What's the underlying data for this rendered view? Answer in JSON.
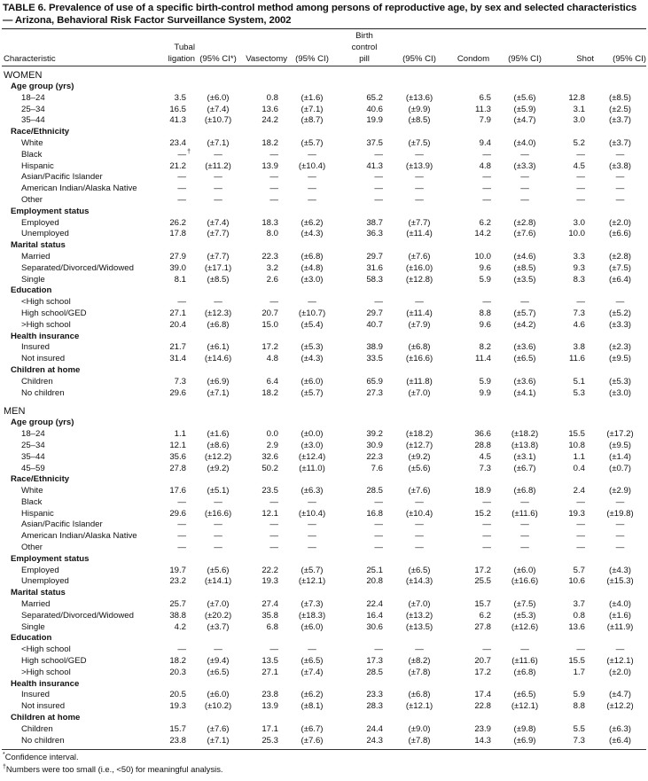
{
  "title": "TABLE 6. Prevalence of use of a specific birth-control method among persons of reproductive age, by sex and selected characteristics — Arizona, Behavioral Risk Factor Surveillance System, 2002",
  "headers": {
    "characteristic": "Characteristic",
    "tubal": [
      "Tubal",
      "ligation"
    ],
    "ci_star": "(95% CI*)",
    "vasectomy": "Vasectomy",
    "ci": "(95% CI)",
    "pill": [
      "Birth",
      "control",
      "pill"
    ],
    "condom": "Condom",
    "shot": "Shot"
  },
  "sections": [
    {
      "label": "WOMEN",
      "groups": [
        {
          "label": "Age group (yrs)",
          "rows": [
            {
              "label": "18–24",
              "values": [
                "3.5",
                "(±6.0)",
                "0.8",
                "(±1.6)",
                "65.2",
                "(±13.6)",
                "6.5",
                "(±5.6)",
                "12.8",
                "(±8.5)"
              ]
            },
            {
              "label": "25–34",
              "values": [
                "16.5",
                "(±7.4)",
                "13.6",
                "(±7.1)",
                "40.6",
                "(±9.9)",
                "11.3",
                "(±5.9)",
                "3.1",
                "(±2.5)"
              ]
            },
            {
              "label": "35–44",
              "values": [
                "41.3",
                "(±10.7)",
                "24.2",
                "(±8.7)",
                "19.9",
                "(±8.5)",
                "7.9",
                "(±4.7)",
                "3.0",
                "(±3.7)"
              ]
            }
          ]
        },
        {
          "label": "Race/Ethnicity",
          "rows": [
            {
              "label": "White",
              "values": [
                "23.4",
                "(±7.1)",
                "18.2",
                "(±5.7)",
                "37.5",
                "(±7.5)",
                "9.4",
                "(±4.0)",
                "5.2",
                "(±3.7)"
              ]
            },
            {
              "label": "Black",
              "values": [
                "—†",
                "—",
                "—",
                "—",
                "—",
                "—",
                "—",
                "—",
                "—",
                "—"
              ]
            },
            {
              "label": "Hispanic",
              "values": [
                "21.2",
                "(±11.2)",
                "13.9",
                "(±10.4)",
                "41.3",
                "(±13.9)",
                "4.8",
                "(±3.3)",
                "4.5",
                "(±3.8)"
              ]
            },
            {
              "label": "Asian/Pacific Islander",
              "values": [
                "—",
                "—",
                "—",
                "—",
                "—",
                "—",
                "—",
                "—",
                "—",
                "—"
              ]
            },
            {
              "label": "American Indian/Alaska Native",
              "values": [
                "—",
                "—",
                "—",
                "—",
                "—",
                "—",
                "—",
                "—",
                "—",
                "—"
              ]
            },
            {
              "label": "Other",
              "values": [
                "—",
                "—",
                "—",
                "—",
                "—",
                "—",
                "—",
                "—",
                "—",
                "—"
              ]
            }
          ]
        },
        {
          "label": "Employment status",
          "rows": [
            {
              "label": "Employed",
              "values": [
                "26.2",
                "(±7.4)",
                "18.3",
                "(±6.2)",
                "38.7",
                "(±7.7)",
                "6.2",
                "(±2.8)",
                "3.0",
                "(±2.0)"
              ]
            },
            {
              "label": "Unemployed",
              "values": [
                "17.8",
                "(±7.7)",
                "8.0",
                "(±4.3)",
                "36.3",
                "(±11.4)",
                "14.2",
                "(±7.6)",
                "10.0",
                "(±6.6)"
              ]
            }
          ]
        },
        {
          "label": "Marital status",
          "rows": [
            {
              "label": "Married",
              "values": [
                "27.9",
                "(±7.7)",
                "22.3",
                "(±6.8)",
                "29.7",
                "(±7.6)",
                "10.0",
                "(±4.6)",
                "3.3",
                "(±2.8)"
              ]
            },
            {
              "label": "Separated/Divorced/Widowed",
              "values": [
                "39.0",
                "(±17.1)",
                "3.2",
                "(±4.8)",
                "31.6",
                "(±16.0)",
                "9.6",
                "(±8.5)",
                "9.3",
                "(±7.5)"
              ]
            },
            {
              "label": "Single",
              "values": [
                "8.1",
                "(±8.5)",
                "2.6",
                "(±3.0)",
                "58.3",
                "(±12.8)",
                "5.9",
                "(±3.5)",
                "8.3",
                "(±6.4)"
              ]
            }
          ]
        },
        {
          "label": "Education",
          "rows": [
            {
              "label": "<High school",
              "values": [
                "—",
                "—",
                "—",
                "—",
                "—",
                "—",
                "—",
                "—",
                "—",
                "—"
              ]
            },
            {
              "label": "High school/GED",
              "values": [
                "27.1",
                "(±12.3)",
                "20.7",
                "(±10.7)",
                "29.7",
                "(±11.4)",
                "8.8",
                "(±5.7)",
                "7.3",
                "(±5.2)"
              ]
            },
            {
              "label": ">High school",
              "values": [
                "20.4",
                "(±6.8)",
                "15.0",
                "(±5.4)",
                "40.7",
                "(±7.9)",
                "9.6",
                "(±4.2)",
                "4.6",
                "(±3.3)"
              ]
            }
          ]
        },
        {
          "label": "Health insurance",
          "rows": [
            {
              "label": "Insured",
              "values": [
                "21.7",
                "(±6.1)",
                "17.2",
                "(±5.3)",
                "38.9",
                "(±6.8)",
                "8.2",
                "(±3.6)",
                "3.8",
                "(±2.3)"
              ]
            },
            {
              "label": "Not insured",
              "values": [
                "31.4",
                "(±14.6)",
                "4.8",
                "(±4.3)",
                "33.5",
                "(±16.6)",
                "11.4",
                "(±6.5)",
                "11.6",
                "(±9.5)"
              ]
            }
          ]
        },
        {
          "label": "Children at home",
          "rows": [
            {
              "label": "Children",
              "values": [
                "7.3",
                "(±6.9)",
                "6.4",
                "(±6.0)",
                "65.9",
                "(±11.8)",
                "5.9",
                "(±3.6)",
                "5.1",
                "(±5.3)"
              ]
            },
            {
              "label": "No children",
              "values": [
                "29.6",
                "(±7.1)",
                "18.2",
                "(±5.7)",
                "27.3",
                "(±7.0)",
                "9.9",
                "(±4.1)",
                "5.3",
                "(±3.0)"
              ]
            }
          ]
        }
      ]
    },
    {
      "label": "MEN",
      "groups": [
        {
          "label": "Age group (yrs)",
          "rows": [
            {
              "label": "18–24",
              "values": [
                "1.1",
                "(±1.6)",
                "0.0",
                "(±0.0)",
                "39.2",
                "(±18.2)",
                "36.6",
                "(±18.2)",
                "15.5",
                "(±17.2)"
              ]
            },
            {
              "label": "25–34",
              "values": [
                "12.1",
                "(±8.6)",
                "2.9",
                "(±3.0)",
                "30.9",
                "(±12.7)",
                "28.8",
                "(±13.8)",
                "10.8",
                "(±9.5)"
              ]
            },
            {
              "label": "35–44",
              "values": [
                "35.6",
                "(±12.2)",
                "32.6",
                "(±12.4)",
                "22.3",
                "(±9.2)",
                "4.5",
                "(±3.1)",
                "1.1",
                "(±1.4)"
              ]
            },
            {
              "label": "45–59",
              "values": [
                "27.8",
                "(±9.2)",
                "50.2",
                "(±11.0)",
                "7.6",
                "(±5.6)",
                "7.3",
                "(±6.7)",
                "0.4",
                "(±0.7)"
              ]
            }
          ]
        },
        {
          "label": "Race/Ethnicity",
          "rows": [
            {
              "label": "White",
              "values": [
                "17.6",
                "(±5.1)",
                "23.5",
                "(±6.3)",
                "28.5",
                "(±7.6)",
                "18.9",
                "(±6.8)",
                "2.4",
                "(±2.9)"
              ]
            },
            {
              "label": "Black",
              "values": [
                "—",
                "—",
                "—",
                "—",
                "—",
                "—",
                "—",
                "—",
                "—",
                "—"
              ]
            },
            {
              "label": "Hispanic",
              "values": [
                "29.6",
                "(±16.6)",
                "12.1",
                "(±10.4)",
                "16.8",
                "(±10.4)",
                "15.2",
                "(±11.6)",
                "19.3",
                "(±19.8)"
              ]
            },
            {
              "label": "Asian/Pacific Islander",
              "values": [
                "—",
                "—",
                "—",
                "—",
                "—",
                "—",
                "—",
                "—",
                "—",
                "—"
              ]
            },
            {
              "label": "American Indian/Alaska Native",
              "values": [
                "—",
                "—",
                "—",
                "—",
                "—",
                "—",
                "—",
                "—",
                "—",
                "—"
              ]
            },
            {
              "label": "Other",
              "values": [
                "—",
                "—",
                "—",
                "—",
                "—",
                "—",
                "—",
                "—",
                "—",
                "—"
              ]
            }
          ]
        },
        {
          "label": "Employment status",
          "rows": [
            {
              "label": "Employed",
              "values": [
                "19.7",
                "(±5.6)",
                "22.2",
                "(±5.7)",
                "25.1",
                "(±6.5)",
                "17.2",
                "(±6.0)",
                "5.7",
                "(±4.3)"
              ]
            },
            {
              "label": "Unemployed",
              "values": [
                "23.2",
                "(±14.1)",
                "19.3",
                "(±12.1)",
                "20.8",
                "(±14.3)",
                "25.5",
                "(±16.6)",
                "10.6",
                "(±15.3)"
              ]
            }
          ]
        },
        {
          "label": "Marital status",
          "rows": [
            {
              "label": "Married",
              "values": [
                "25.7",
                "(±7.0)",
                "27.4",
                "(±7.3)",
                "22.4",
                "(±7.0)",
                "15.7",
                "(±7.5)",
                "3.7",
                "(±4.0)"
              ]
            },
            {
              "label": "Separated/Divorced/Widowed",
              "values": [
                "38.8",
                "(±20.2)",
                "35.8",
                "(±18.3)",
                "16.4",
                "(±13.2)",
                "6.2",
                "(±5.3)",
                "0.8",
                "(±1.6)"
              ]
            },
            {
              "label": "Single",
              "values": [
                "4.2",
                "(±3.7)",
                "6.8",
                "(±6.0)",
                "30.6",
                "(±13.5)",
                "27.8",
                "(±12.6)",
                "13.6",
                "(±11.9)"
              ]
            }
          ]
        },
        {
          "label": "Education",
          "rows": [
            {
              "label": "<High school",
              "values": [
                "—",
                "—",
                "—",
                "—",
                "—",
                "—",
                "—",
                "—",
                "—",
                "—"
              ]
            },
            {
              "label": "High school/GED",
              "values": [
                "18.2",
                "(±9.4)",
                "13.5",
                "(±6.5)",
                "17.3",
                "(±8.2)",
                "20.7",
                "(±11.6)",
                "15.5",
                "(±12.1)"
              ]
            },
            {
              "label": ">High school",
              "values": [
                "20.3",
                "(±6.5)",
                "27.1",
                "(±7.4)",
                "28.5",
                "(±7.8)",
                "17.2",
                "(±6.8)",
                "1.7",
                "(±2.0)"
              ]
            }
          ]
        },
        {
          "label": "Health insurance",
          "rows": [
            {
              "label": "Insured",
              "values": [
                "20.5",
                "(±6.0)",
                "23.8",
                "(±6.2)",
                "23.3",
                "(±6.8)",
                "17.4",
                "(±6.5)",
                "5.9",
                "(±4.7)"
              ]
            },
            {
              "label": "Not insured",
              "values": [
                "19.3",
                "(±10.2)",
                "13.9",
                "(±8.1)",
                "28.3",
                "(±12.1)",
                "22.8",
                "(±12.1)",
                "8.8",
                "(±12.2)"
              ]
            }
          ]
        },
        {
          "label": "Children at home",
          "rows": [
            {
              "label": "Children",
              "values": [
                "15.7",
                "(±7.6)",
                "17.1",
                "(±6.7)",
                "24.4",
                "(±9.0)",
                "23.9",
                "(±9.8)",
                "5.5",
                "(±6.3)"
              ]
            },
            {
              "label": "No children",
              "values": [
                "23.8",
                "(±7.1)",
                "25.3",
                "(±7.6)",
                "24.3",
                "(±7.8)",
                "14.3",
                "(±6.9)",
                "7.3",
                "(±6.4)"
              ]
            }
          ]
        }
      ]
    }
  ],
  "footnotes": [
    {
      "mark": "*",
      "text": "Confidence interval."
    },
    {
      "mark": "†",
      "text": "Numbers were too small (i.e., <50) for meaningful analysis."
    }
  ]
}
